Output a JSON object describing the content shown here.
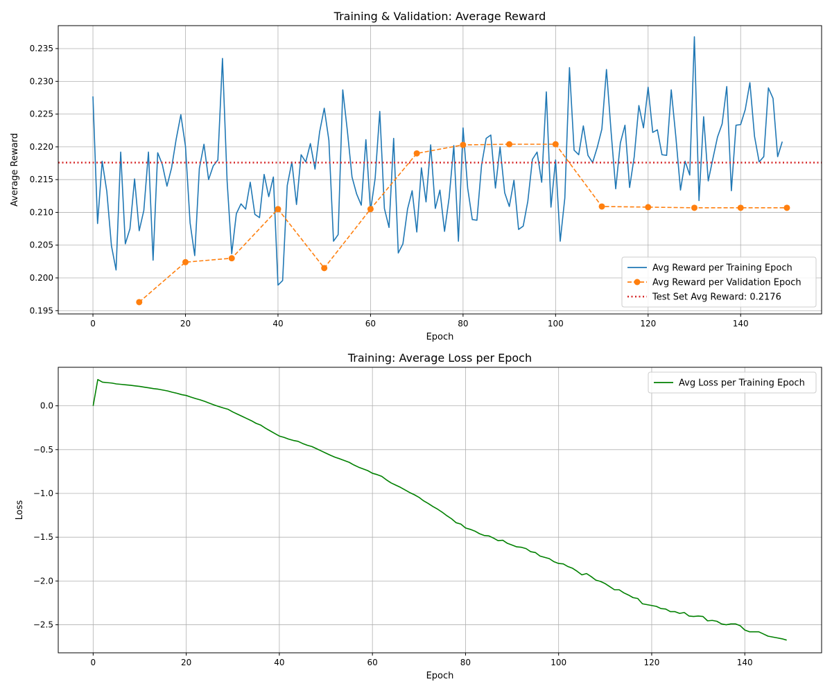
{
  "colors": {
    "train_reward": "#1f77b4",
    "validation_reward": "#ff7f0e",
    "test_reward": "#d62728",
    "train_loss": "#008000",
    "grid": "#b0b0b0"
  },
  "chart_data": [
    {
      "type": "line",
      "title": "Training & Validation: Average Reward",
      "xlabel": "Epoch",
      "ylabel": "Average Reward",
      "xlim": [
        -7.5,
        157.5
      ],
      "ylim": [
        0.1945,
        0.2385
      ],
      "xticks": [
        0,
        20,
        40,
        60,
        80,
        100,
        120,
        140
      ],
      "yticks": [
        0.195,
        0.2,
        0.205,
        0.21,
        0.215,
        0.22,
        0.225,
        0.23,
        0.235
      ],
      "xtick_labels": [
        "0",
        "20",
        "40",
        "60",
        "80",
        "100",
        "120",
        "140"
      ],
      "ytick_labels": [
        "0.195",
        "0.200",
        "0.205",
        "0.210",
        "0.215",
        "0.220",
        "0.225",
        "0.230",
        "0.235"
      ],
      "grid": true,
      "legend_position": "lower-right",
      "series": [
        {
          "name": "Avg Reward per Training Epoch",
          "color_key": "train_reward",
          "style": "solid",
          "x": [
            0,
            1,
            2,
            3,
            4,
            5,
            6,
            7,
            8,
            9,
            10,
            11,
            12,
            13,
            14,
            15,
            16,
            17,
            18,
            19,
            20,
            21,
            22,
            23,
            24,
            25,
            26,
            27,
            28,
            29,
            30,
            31,
            32,
            33,
            34,
            35,
            36,
            37,
            38,
            39,
            40,
            41,
            42,
            43,
            44,
            45,
            46,
            47,
            48,
            49,
            50,
            51,
            52,
            53,
            54,
            55,
            56,
            57,
            58,
            59,
            60,
            61,
            62,
            63,
            64,
            65,
            66,
            67,
            68,
            69,
            70,
            71,
            72,
            73,
            74,
            75,
            76,
            77,
            78,
            79,
            80,
            81,
            82,
            83,
            84,
            85,
            86,
            87,
            88,
            89,
            90,
            91,
            92,
            93,
            94,
            95,
            96,
            97,
            98,
            99,
            100,
            101,
            102,
            103,
            104,
            105,
            106,
            107,
            108,
            109,
            110,
            111,
            112,
            113,
            114,
            115,
            116,
            117,
            118,
            119,
            120,
            121,
            122,
            123,
            124,
            125,
            126,
            127,
            128,
            129,
            130,
            131,
            132,
            133,
            134,
            135,
            136,
            137,
            138,
            139,
            140,
            141,
            142,
            143,
            144,
            145,
            146,
            147,
            148,
            149
          ],
          "y": [
            0.2277,
            0.2083,
            0.2178,
            0.2132,
            0.2049,
            0.2012,
            0.2192,
            0.2052,
            0.2075,
            0.2151,
            0.2072,
            0.2103,
            0.2192,
            0.2027,
            0.2191,
            0.2173,
            0.214,
            0.2168,
            0.2212,
            0.2249,
            0.2201,
            0.2084,
            0.2034,
            0.2167,
            0.2204,
            0.215,
            0.2171,
            0.218,
            0.2335,
            0.2148,
            0.2037,
            0.2098,
            0.2113,
            0.2105,
            0.2146,
            0.2097,
            0.2092,
            0.2158,
            0.2124,
            0.2154,
            0.1989,
            0.1996,
            0.2141,
            0.2177,
            0.2112,
            0.2188,
            0.2177,
            0.2205,
            0.2166,
            0.2223,
            0.2259,
            0.221,
            0.2056,
            0.2066,
            0.2287,
            0.2224,
            0.2154,
            0.2128,
            0.2111,
            0.2211,
            0.2102,
            0.2152,
            0.2254,
            0.2106,
            0.2077,
            0.2213,
            0.2038,
            0.2052,
            0.2105,
            0.2133,
            0.207,
            0.2168,
            0.2116,
            0.2203,
            0.2106,
            0.2134,
            0.2071,
            0.2123,
            0.2202,
            0.2056,
            0.2229,
            0.2137,
            0.2089,
            0.2088,
            0.2172,
            0.2213,
            0.2218,
            0.2137,
            0.22,
            0.213,
            0.2109,
            0.2149,
            0.2074,
            0.2079,
            0.2117,
            0.2181,
            0.2192,
            0.2146,
            0.2284,
            0.2108,
            0.218,
            0.2056,
            0.2122,
            0.2321,
            0.2195,
            0.2188,
            0.2232,
            0.2187,
            0.2176,
            0.2199,
            0.2227,
            0.2318,
            0.2223,
            0.2136,
            0.2206,
            0.2233,
            0.2138,
            0.2185,
            0.2263,
            0.2229,
            0.2291,
            0.2222,
            0.2226,
            0.2188,
            0.2187,
            0.2287,
            0.2215,
            0.2134,
            0.2178,
            0.2157,
            0.2368,
            0.2118,
            0.2246,
            0.2148,
            0.2182,
            0.2215,
            0.2235,
            0.2292,
            0.2133,
            0.2233,
            0.2234,
            0.2257,
            0.2298,
            0.2216,
            0.2177,
            0.2185,
            0.229,
            0.2274,
            0.2185,
            0.2208
          ]
        },
        {
          "name": "Avg Reward per Validation Epoch",
          "color_key": "validation_reward",
          "style": "dashed",
          "marker": "circle",
          "x": [
            10,
            20,
            30,
            40,
            50,
            60,
            70,
            80,
            90,
            100,
            110,
            120,
            130,
            140,
            150
          ],
          "y": [
            0.1963,
            0.2024,
            0.203,
            0.2105,
            0.2015,
            0.2105,
            0.219,
            0.2203,
            0.2204,
            0.2204,
            0.2109,
            0.2108,
            0.2107,
            0.2107,
            0.2107
          ]
        },
        {
          "name": "Test Set Avg Reward: 0.2176",
          "color_key": "test_reward",
          "style": "dotted",
          "hline": 0.2176
        }
      ]
    },
    {
      "type": "line",
      "title": "Training: Average Loss per Epoch",
      "xlabel": "Epoch",
      "ylabel": "Loss",
      "xlim": [
        -7.5,
        156.5
      ],
      "ylim": [
        -2.82,
        0.44
      ],
      "xticks": [
        0,
        20,
        40,
        60,
        80,
        100,
        120,
        140
      ],
      "yticks": [
        -2.5,
        -2.0,
        -1.5,
        -1.0,
        -0.5,
        0.0
      ],
      "xtick_labels": [
        "0",
        "20",
        "40",
        "60",
        "80",
        "100",
        "120",
        "140"
      ],
      "ytick_labels": [
        "−2.5",
        "−2.0",
        "−1.5",
        "−1.0",
        "−0.5",
        "0.0"
      ],
      "grid": true,
      "legend_position": "upper-right",
      "series": [
        {
          "name": "Avg Loss per Training Epoch",
          "color_key": "train_loss",
          "style": "solid",
          "x": [
            0,
            1,
            2,
            3,
            4,
            5,
            6,
            7,
            8,
            9,
            10,
            11,
            12,
            13,
            14,
            15,
            16,
            17,
            18,
            19,
            20,
            21,
            22,
            23,
            24,
            25,
            26,
            27,
            28,
            29,
            30,
            31,
            32,
            33,
            34,
            35,
            36,
            37,
            38,
            39,
            40,
            41,
            42,
            43,
            44,
            45,
            46,
            47,
            48,
            49,
            50,
            51,
            52,
            53,
            54,
            55,
            56,
            57,
            58,
            59,
            60,
            61,
            62,
            63,
            64,
            65,
            66,
            67,
            68,
            69,
            70,
            71,
            72,
            73,
            74,
            75,
            76,
            77,
            78,
            79,
            80,
            81,
            82,
            83,
            84,
            85,
            86,
            87,
            88,
            89,
            90,
            91,
            92,
            93,
            94,
            95,
            96,
            97,
            98,
            99,
            100,
            101,
            102,
            103,
            104,
            105,
            106,
            107,
            108,
            109,
            110,
            111,
            112,
            113,
            114,
            115,
            116,
            117,
            118,
            119,
            120,
            121,
            122,
            123,
            124,
            125,
            126,
            127,
            128,
            129,
            130,
            131,
            132,
            133,
            134,
            135,
            136,
            137,
            138,
            139,
            140,
            141,
            142,
            143,
            144,
            145,
            146,
            147,
            148,
            149
          ],
          "y": [
            0.0,
            0.3,
            0.27,
            0.265,
            0.26,
            0.25,
            0.245,
            0.24,
            0.235,
            0.228,
            0.222,
            0.213,
            0.205,
            0.196,
            0.19,
            0.18,
            0.17,
            0.155,
            0.143,
            0.128,
            0.118,
            0.1,
            0.083,
            0.068,
            0.05,
            0.03,
            0.01,
            -0.008,
            -0.025,
            -0.04,
            -0.07,
            -0.095,
            -0.12,
            -0.145,
            -0.17,
            -0.2,
            -0.22,
            -0.255,
            -0.285,
            -0.315,
            -0.345,
            -0.36,
            -0.38,
            -0.395,
            -0.405,
            -0.43,
            -0.45,
            -0.465,
            -0.49,
            -0.515,
            -0.54,
            -0.565,
            -0.588,
            -0.605,
            -0.625,
            -0.645,
            -0.675,
            -0.7,
            -0.72,
            -0.74,
            -0.77,
            -0.785,
            -0.805,
            -0.845,
            -0.88,
            -0.905,
            -0.93,
            -0.96,
            -0.99,
            -1.015,
            -1.045,
            -1.085,
            -1.115,
            -1.15,
            -1.18,
            -1.215,
            -1.255,
            -1.29,
            -1.335,
            -1.35,
            -1.395,
            -1.41,
            -1.43,
            -1.46,
            -1.48,
            -1.485,
            -1.51,
            -1.54,
            -1.535,
            -1.57,
            -1.59,
            -1.61,
            -1.615,
            -1.63,
            -1.665,
            -1.675,
            -1.715,
            -1.73,
            -1.745,
            -1.78,
            -1.8,
            -1.805,
            -1.835,
            -1.855,
            -1.89,
            -1.93,
            -1.915,
            -1.95,
            -1.99,
            -2.005,
            -2.03,
            -2.065,
            -2.1,
            -2.1,
            -2.135,
            -2.16,
            -2.19,
            -2.2,
            -2.26,
            -2.27,
            -2.28,
            -2.29,
            -2.315,
            -2.32,
            -2.35,
            -2.35,
            -2.37,
            -2.36,
            -2.4,
            -2.405,
            -2.4,
            -2.405,
            -2.455,
            -2.45,
            -2.46,
            -2.49,
            -2.5,
            -2.49,
            -2.49,
            -2.51,
            -2.56,
            -2.58,
            -2.58,
            -2.58,
            -2.605,
            -2.63,
            -2.64,
            -2.65,
            -2.66,
            -2.675
          ]
        }
      ]
    }
  ]
}
